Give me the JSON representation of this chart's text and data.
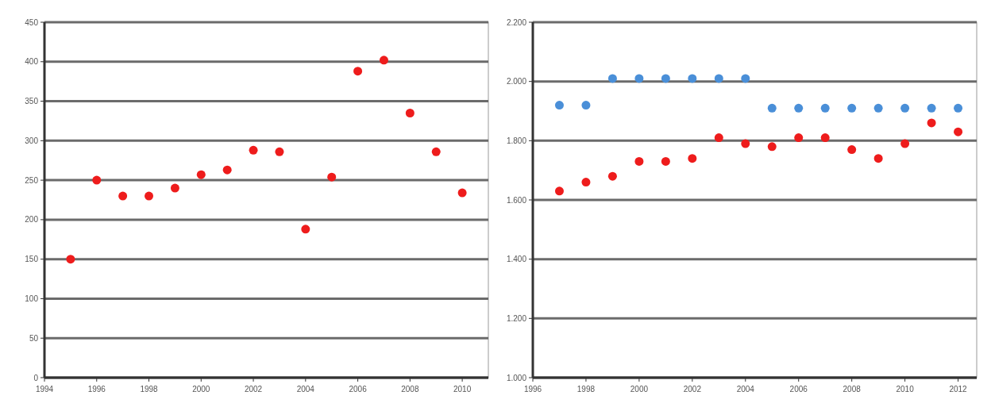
{
  "chart_data": [
    {
      "type": "scatter",
      "x": [
        1995,
        1996,
        1997,
        1998,
        1999,
        2000,
        2001,
        2002,
        2003,
        2004,
        2005,
        2006,
        2007,
        2008,
        2009,
        2010
      ],
      "series": [
        {
          "color": "#ee1c1c",
          "values": [
            150,
            250,
            230,
            230,
            240,
            257,
            263,
            288,
            286,
            188,
            254,
            388,
            402,
            335,
            286,
            234
          ]
        }
      ],
      "xlim": [
        1994,
        2011
      ],
      "xticks": [
        1994,
        1996,
        1998,
        2000,
        2002,
        2004,
        2006,
        2008,
        2010
      ],
      "ylim": [
        0,
        450
      ],
      "yticks": [
        0,
        50,
        100,
        150,
        200,
        250,
        300,
        350,
        400,
        450
      ],
      "grid": "y",
      "marker": "circle"
    },
    {
      "type": "scatter",
      "x": [
        1997,
        1998,
        1999,
        2000,
        2001,
        2002,
        2003,
        2004,
        2005,
        2006,
        2007,
        2008,
        2009,
        2010,
        2011,
        2012
      ],
      "series": [
        {
          "color": "#4a8fd8",
          "values": [
            1920,
            1920,
            2010,
            2010,
            2010,
            2010,
            2010,
            2010,
            1910,
            1910,
            1910,
            1910,
            1910,
            1910,
            1910,
            1910
          ]
        },
        {
          "color": "#ee1c1c",
          "values": [
            1630,
            1660,
            1680,
            1730,
            1730,
            1740,
            1810,
            1790,
            1780,
            1810,
            1810,
            1770,
            1740,
            1790,
            1860,
            1830
          ]
        }
      ],
      "xlim": [
        1996,
        2012.7
      ],
      "xticks": [
        1996,
        1998,
        2000,
        2002,
        2004,
        2006,
        2008,
        2010,
        2012
      ],
      "ylim": [
        1000,
        2200
      ],
      "yticks": [
        {
          "value": 1000,
          "label": "1.000"
        },
        {
          "value": 1200,
          "label": "1.200"
        },
        {
          "value": 1400,
          "label": "1.400"
        },
        {
          "value": 1600,
          "label": "1.600"
        },
        {
          "value": 1800,
          "label": "1.800"
        },
        {
          "value": 2000,
          "label": "2.000"
        },
        {
          "value": 2200,
          "label": "2.200"
        }
      ],
      "grid": "y",
      "marker": "circle"
    }
  ]
}
